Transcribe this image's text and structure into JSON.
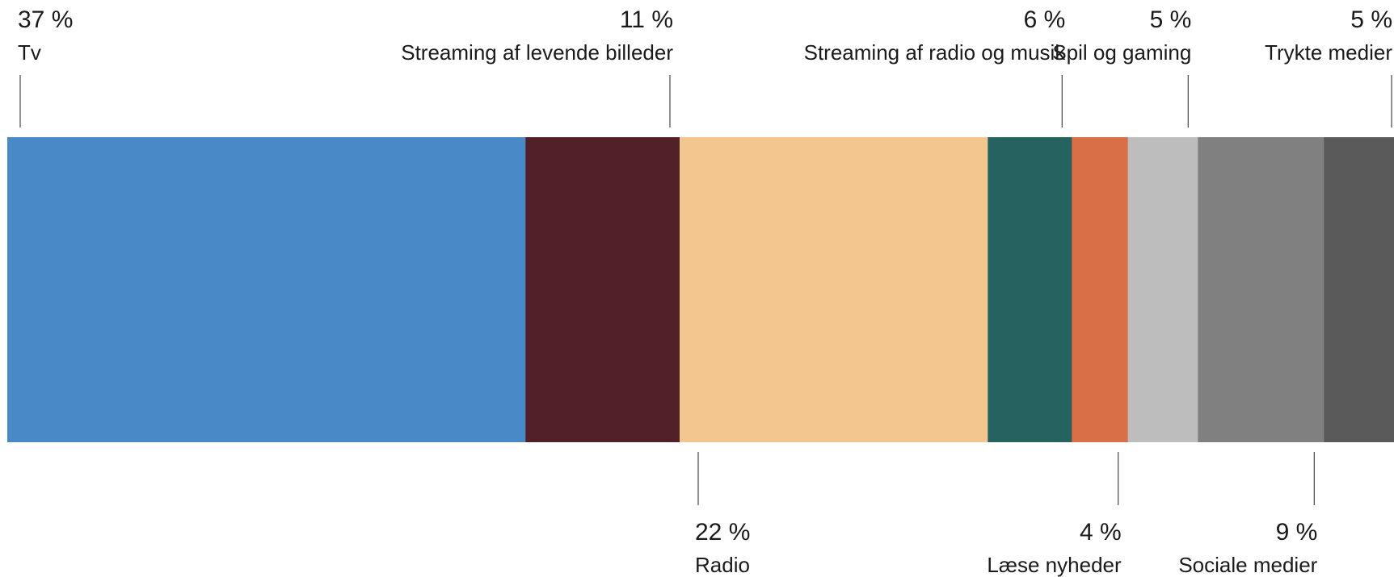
{
  "chart_data": {
    "type": "bar",
    "orientation": "horizontal-stacked-100",
    "title": "",
    "xlabel": "",
    "ylabel": "",
    "segments": [
      {
        "label": "Tv",
        "value": 37,
        "value_text": "37 %",
        "color": "#4a89c7",
        "label_side": "top"
      },
      {
        "label": "Streaming af levende billeder",
        "value": 11,
        "value_text": "11 %",
        "color": "#522027",
        "label_side": "top"
      },
      {
        "label": "Radio",
        "value": 22,
        "value_text": "22 %",
        "color": "#f2c68e",
        "label_side": "bottom"
      },
      {
        "label": "Streaming af radio og musik",
        "value": 6,
        "value_text": "6 %",
        "color": "#256260",
        "label_side": "top"
      },
      {
        "label": "Læse nyheder",
        "value": 4,
        "value_text": "4 %",
        "color": "#d86f46",
        "label_side": "bottom"
      },
      {
        "label": "Spil og gaming",
        "value": 5,
        "value_text": "5 %",
        "color": "#bdbdbd",
        "label_side": "top"
      },
      {
        "label": "Sociale medier",
        "value": 9,
        "value_text": "9 %",
        "color": "#808080",
        "label_side": "bottom"
      },
      {
        "label": "Trykte medier",
        "value": 5,
        "value_text": "5 %",
        "color": "#5a5a5a",
        "label_side": "top"
      }
    ]
  }
}
